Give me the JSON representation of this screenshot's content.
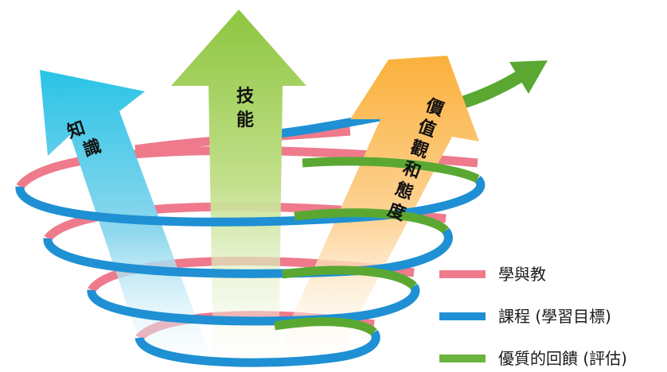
{
  "arrows": {
    "knowledge": {
      "chars": [
        "知",
        "識"
      ]
    },
    "skills": {
      "chars": [
        "技",
        "能"
      ]
    },
    "values": {
      "chars": [
        "價",
        "值",
        "觀",
        "和",
        "態",
        "度"
      ]
    }
  },
  "legend": {
    "items": [
      {
        "label": "學與教",
        "color": "#ee7a8c"
      },
      {
        "label": "課程 (學習目標)",
        "color": "#1f90d3"
      },
      {
        "label": "優質的回饋 (評估)",
        "color": "#6cb33f"
      }
    ]
  },
  "colors": {
    "knowledge_arrow": "#29c3e6",
    "skills_arrow": "#8dc63f",
    "values_arrow": "#fbb03b",
    "green_arrow": "#5aa832"
  }
}
